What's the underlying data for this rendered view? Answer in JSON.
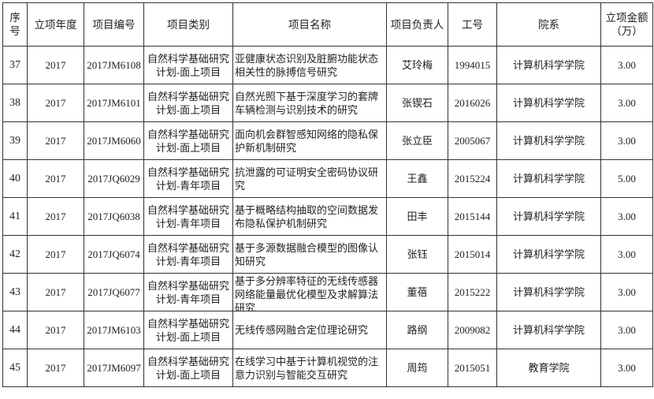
{
  "headers": [
    "序号",
    "立项年度",
    "项目编号",
    "项目类别",
    "项目名称",
    "项目负责人",
    "工号",
    "院系",
    "立项金额（万）"
  ],
  "rows": [
    {
      "seq": "37",
      "year": "2017",
      "code": "2017JM6108",
      "category": "自然科学基础研究计划-面上项目",
      "name": "亚健康状态识别及脏腑功能状态相关性的脉搏信号研究",
      "leader": "艾玲梅",
      "id": "1994015",
      "dept": "计算机科学学院",
      "amount": "3.00"
    },
    {
      "seq": "38",
      "year": "2017",
      "code": "2017JM6101",
      "category": "自然科学基础研究计划-面上项目",
      "name": "自然光照下基于深度学习的套牌车辆检测与识别技术的研究",
      "leader": "张锲石",
      "id": "2016026",
      "dept": "计算机科学学院",
      "amount": "3.00"
    },
    {
      "seq": "39",
      "year": "2017",
      "code": "2017JM6060",
      "category": "自然科学基础研究计划-面上项目",
      "name": "面向机会群智感知网络的隐私保护新机制研究",
      "leader": "张立臣",
      "id": "2005067",
      "dept": "计算机科学学院",
      "amount": "3.00"
    },
    {
      "seq": "40",
      "year": "2017",
      "code": "2017JQ6029",
      "category": "自然科学基础研究计划-青年项目",
      "name": "抗泄露的可证明安全密码协议研究",
      "leader": "王鑫",
      "id": "2015224",
      "dept": "计算机科学学院",
      "amount": "5.00"
    },
    {
      "seq": "41",
      "year": "2017",
      "code": "2017JQ6038",
      "category": "自然科学基础研究计划-青年项目",
      "name": "基于概略结构抽取的空间数据发布隐私保护机制研究",
      "leader": "田丰",
      "id": "2015144",
      "dept": "计算机科学学院",
      "amount": "3.00"
    },
    {
      "seq": "42",
      "year": "2017",
      "code": "2017JQ6074",
      "category": "自然科学基础研究计划-青年项目",
      "name": "基于多源数据融合模型的图像认知研究",
      "leader": "张钰",
      "id": "2015014",
      "dept": "计算机科学学院",
      "amount": "3.00"
    },
    {
      "seq": "43",
      "year": "2017",
      "code": "2017JQ6077",
      "category": "自然科学基础研究计划-青年项目",
      "name": "基于多分辨率特征的无线传感器网络能量最优化模型及求解算法研究",
      "leader": "董蓓",
      "id": "2015222",
      "dept": "计算机科学学院",
      "amount": "3.00"
    },
    {
      "seq": "44",
      "year": "2017",
      "code": "2017JM6103",
      "category": "自然科学基础研究计划-面上项目",
      "name": "无线传感网融合定位理论研究",
      "leader": "路纲",
      "id": "2009082",
      "dept": "计算机科学学院",
      "amount": "3.00"
    },
    {
      "seq": "45",
      "year": "2017",
      "code": "2017JM6097",
      "category": "自然科学基础研究计划-面上项目",
      "name": "在线学习中基于计算机视觉的注意力识别与智能交互研究",
      "leader": "周筠",
      "id": "2015051",
      "dept": "教育学院",
      "amount": "3.00"
    }
  ]
}
